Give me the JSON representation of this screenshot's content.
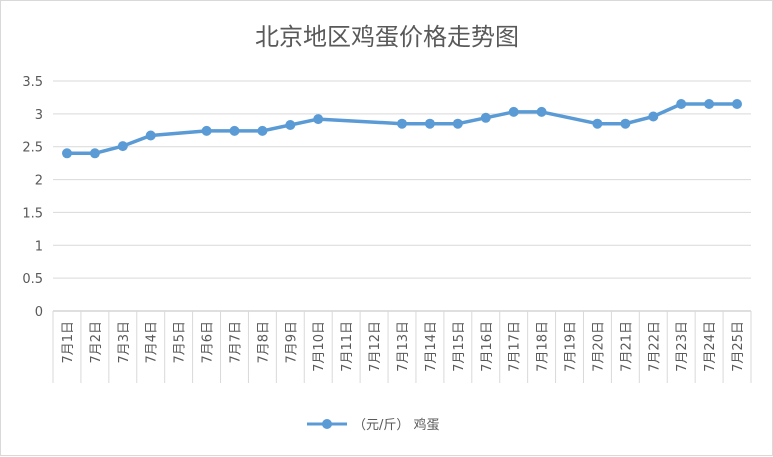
{
  "chart_data": {
    "type": "line",
    "title": "北京地区鸡蛋价格走势图",
    "xlabel": "",
    "ylabel": "",
    "categories": [
      "7月1日",
      "7月2日",
      "7月3日",
      "7月4日",
      "7月5日",
      "7月6日",
      "7月7日",
      "7月8日",
      "7月9日",
      "7月10日",
      "7月11日",
      "7月12日",
      "7月13日",
      "7月14日",
      "7月15日",
      "7月16日",
      "7月17日",
      "7月18日",
      "7月19日",
      "7月20日",
      "7月21日",
      "7月22日",
      "7月23日",
      "7月24日",
      "7月25日"
    ],
    "series": [
      {
        "name": "（元/斤） 鸡蛋",
        "color": "#5b9bd5",
        "values": [
          2.4,
          2.4,
          2.51,
          2.67,
          null,
          2.74,
          2.74,
          2.74,
          2.83,
          2.92,
          null,
          null,
          2.85,
          2.85,
          2.85,
          2.94,
          3.03,
          3.03,
          null,
          2.85,
          2.85,
          2.96,
          3.15,
          3.15,
          3.15
        ]
      }
    ],
    "ylim": [
      0,
      3.5
    ],
    "yticks": [
      "0",
      "0.5",
      "1",
      "1.5",
      "2",
      "2.5",
      "3",
      "3.5"
    ],
    "grid": true,
    "legend_position": "bottom"
  }
}
